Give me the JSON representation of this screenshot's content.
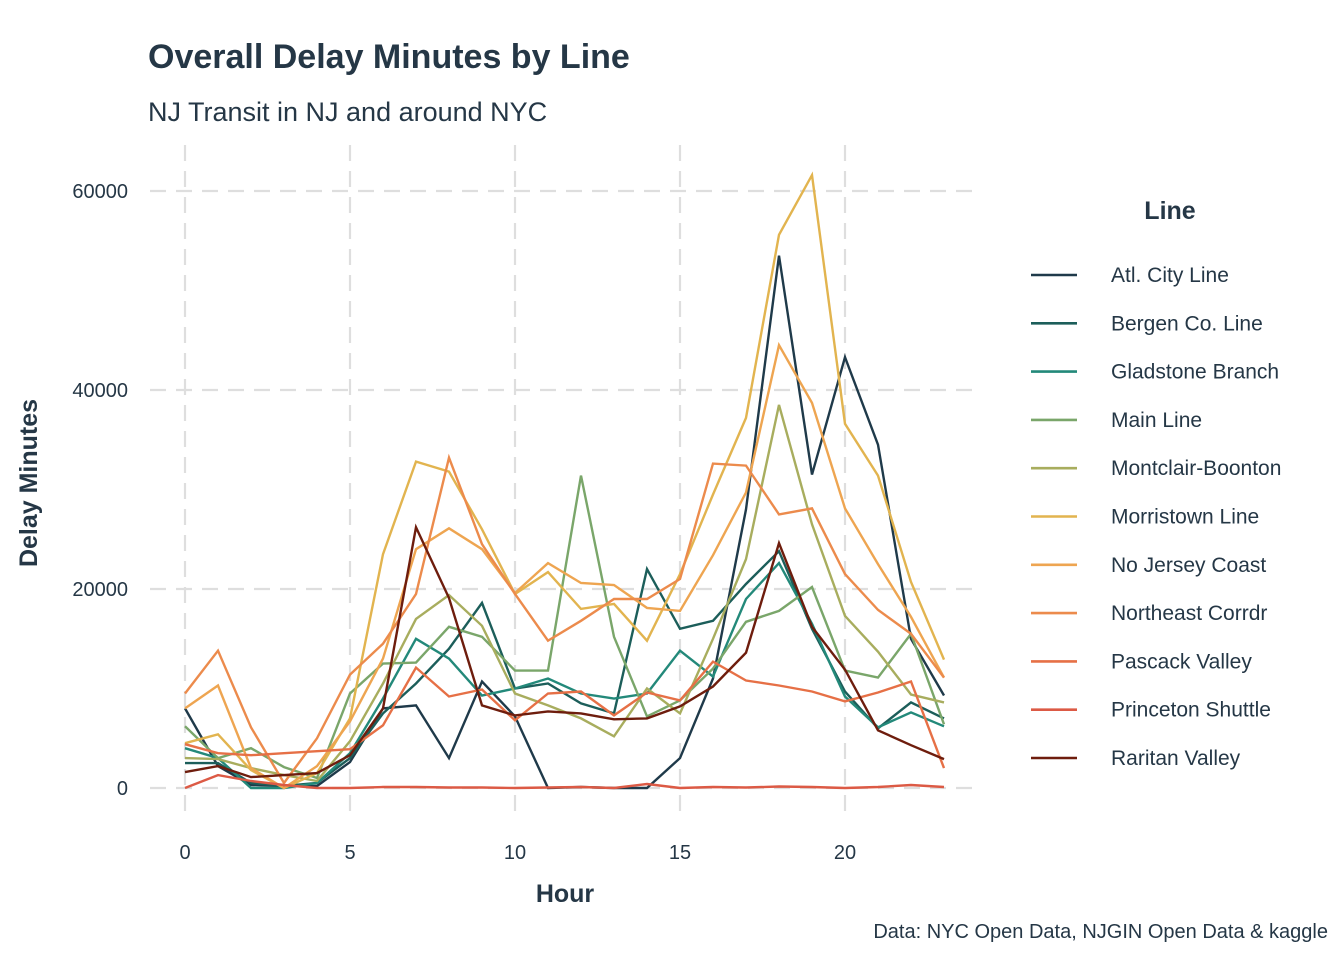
{
  "chart_data": {
    "type": "line",
    "title": "Overall Delay Minutes by Line",
    "subtitle": "NJ Transit in NJ and around NYC",
    "caption": "Data: NYC Open Data, NJGIN Open Data & kaggle",
    "xlabel": "Hour",
    "ylabel": "Delay Minutes",
    "xlim": [
      0,
      23
    ],
    "ylim": [
      0,
      62000
    ],
    "x_ticks": [
      0,
      5,
      10,
      15,
      20
    ],
    "y_ticks": [
      0,
      20000,
      40000,
      60000
    ],
    "grid": true,
    "legend": {
      "title": "Line",
      "position": "right"
    },
    "x": [
      0,
      1,
      2,
      3,
      4,
      5,
      6,
      7,
      8,
      9,
      10,
      11,
      12,
      13,
      14,
      15,
      16,
      17,
      18,
      19,
      20,
      21,
      22,
      23
    ],
    "series": [
      {
        "name": "Atl. City Line",
        "color": "#1f3a4a",
        "values": [
          8000,
          2200,
          300,
          200,
          200,
          2600,
          8000,
          8300,
          3000,
          10700,
          7200,
          0,
          100,
          0,
          0,
          3000,
          11000,
          28000,
          53500,
          31500,
          43300,
          34500,
          15000,
          9300
        ]
      },
      {
        "name": "Bergen Co. Line",
        "color": "#1c5e5a",
        "values": [
          2500,
          2500,
          500,
          200,
          500,
          3000,
          7500,
          10500,
          14000,
          18600,
          10000,
          10500,
          8500,
          7500,
          22000,
          16000,
          16800,
          20500,
          23800,
          16000,
          9700,
          6000,
          8600,
          7000
        ]
      },
      {
        "name": "Gladstone Branch",
        "color": "#23897a",
        "values": [
          4000,
          3000,
          0,
          0,
          500,
          3500,
          9000,
          15000,
          13000,
          9300,
          10000,
          11000,
          9500,
          9000,
          9500,
          13800,
          11200,
          19000,
          22600,
          16500,
          9200,
          6100,
          7600,
          6200
        ]
      },
      {
        "name": "Main Line",
        "color": "#7aa66a",
        "values": [
          6200,
          3000,
          4000,
          2100,
          1000,
          9500,
          12500,
          12600,
          16200,
          15200,
          11800,
          11800,
          31400,
          15200,
          7200,
          8800,
          12000,
          16700,
          17800,
          20200,
          11800,
          11100,
          15500,
          6400
        ]
      },
      {
        "name": "Montclair-Boonton",
        "color": "#a8ad5e",
        "values": [
          3000,
          2900,
          2000,
          1300,
          700,
          4700,
          10500,
          17000,
          19400,
          16300,
          9500,
          8300,
          7000,
          5200,
          10000,
          7500,
          15000,
          23000,
          38500,
          26500,
          17300,
          13700,
          9400,
          8600
        ]
      },
      {
        "name": "Morristown Line",
        "color": "#e2b44f",
        "values": [
          4500,
          5400,
          1800,
          0,
          1500,
          7000,
          23500,
          32800,
          31800,
          26000,
          19500,
          21700,
          18000,
          18500,
          14800,
          21500,
          29500,
          37200,
          55600,
          61600,
          36600,
          31400,
          20700,
          12900
        ]
      },
      {
        "name": "No Jersey Coast",
        "color": "#eea551",
        "values": [
          8000,
          10300,
          2000,
          0,
          2200,
          6700,
          13000,
          24000,
          26100,
          24000,
          19600,
          22600,
          20600,
          20400,
          18100,
          17800,
          23400,
          29700,
          44500,
          38700,
          28100,
          22500,
          17200,
          11100
        ]
      },
      {
        "name": "Northeast Corrdr",
        "color": "#ec8b4c",
        "values": [
          9500,
          13800,
          6100,
          500,
          5000,
          11400,
          14500,
          19500,
          33200,
          24500,
          19500,
          14800,
          16800,
          19000,
          19000,
          21000,
          32600,
          32400,
          27500,
          28100,
          21500,
          17900,
          15500,
          11100
        ]
      },
      {
        "name": "Pascack Valley",
        "color": "#e67046",
        "values": [
          4400,
          3500,
          3300,
          3500,
          3700,
          3900,
          6300,
          12100,
          9200,
          9900,
          6800,
          9500,
          9700,
          7300,
          9600,
          8800,
          12700,
          10800,
          10300,
          9700,
          8700,
          9600,
          10700,
          2000
        ]
      },
      {
        "name": "Princeton Shuttle",
        "color": "#dc5a45",
        "values": [
          0,
          1300,
          700,
          300,
          0,
          0,
          100,
          100,
          50,
          50,
          0,
          50,
          100,
          0,
          400,
          0,
          100,
          50,
          150,
          100,
          0,
          100,
          300,
          100
        ]
      },
      {
        "name": "Raritan Valley",
        "color": "#6e1d0d",
        "values": [
          1600,
          2200,
          1100,
          1300,
          1500,
          3300,
          8000,
          26200,
          19100,
          8300,
          7300,
          7700,
          7500,
          6900,
          7000,
          8200,
          10200,
          13600,
          24600,
          16200,
          11900,
          5800,
          4300,
          2900
        ]
      }
    ]
  }
}
